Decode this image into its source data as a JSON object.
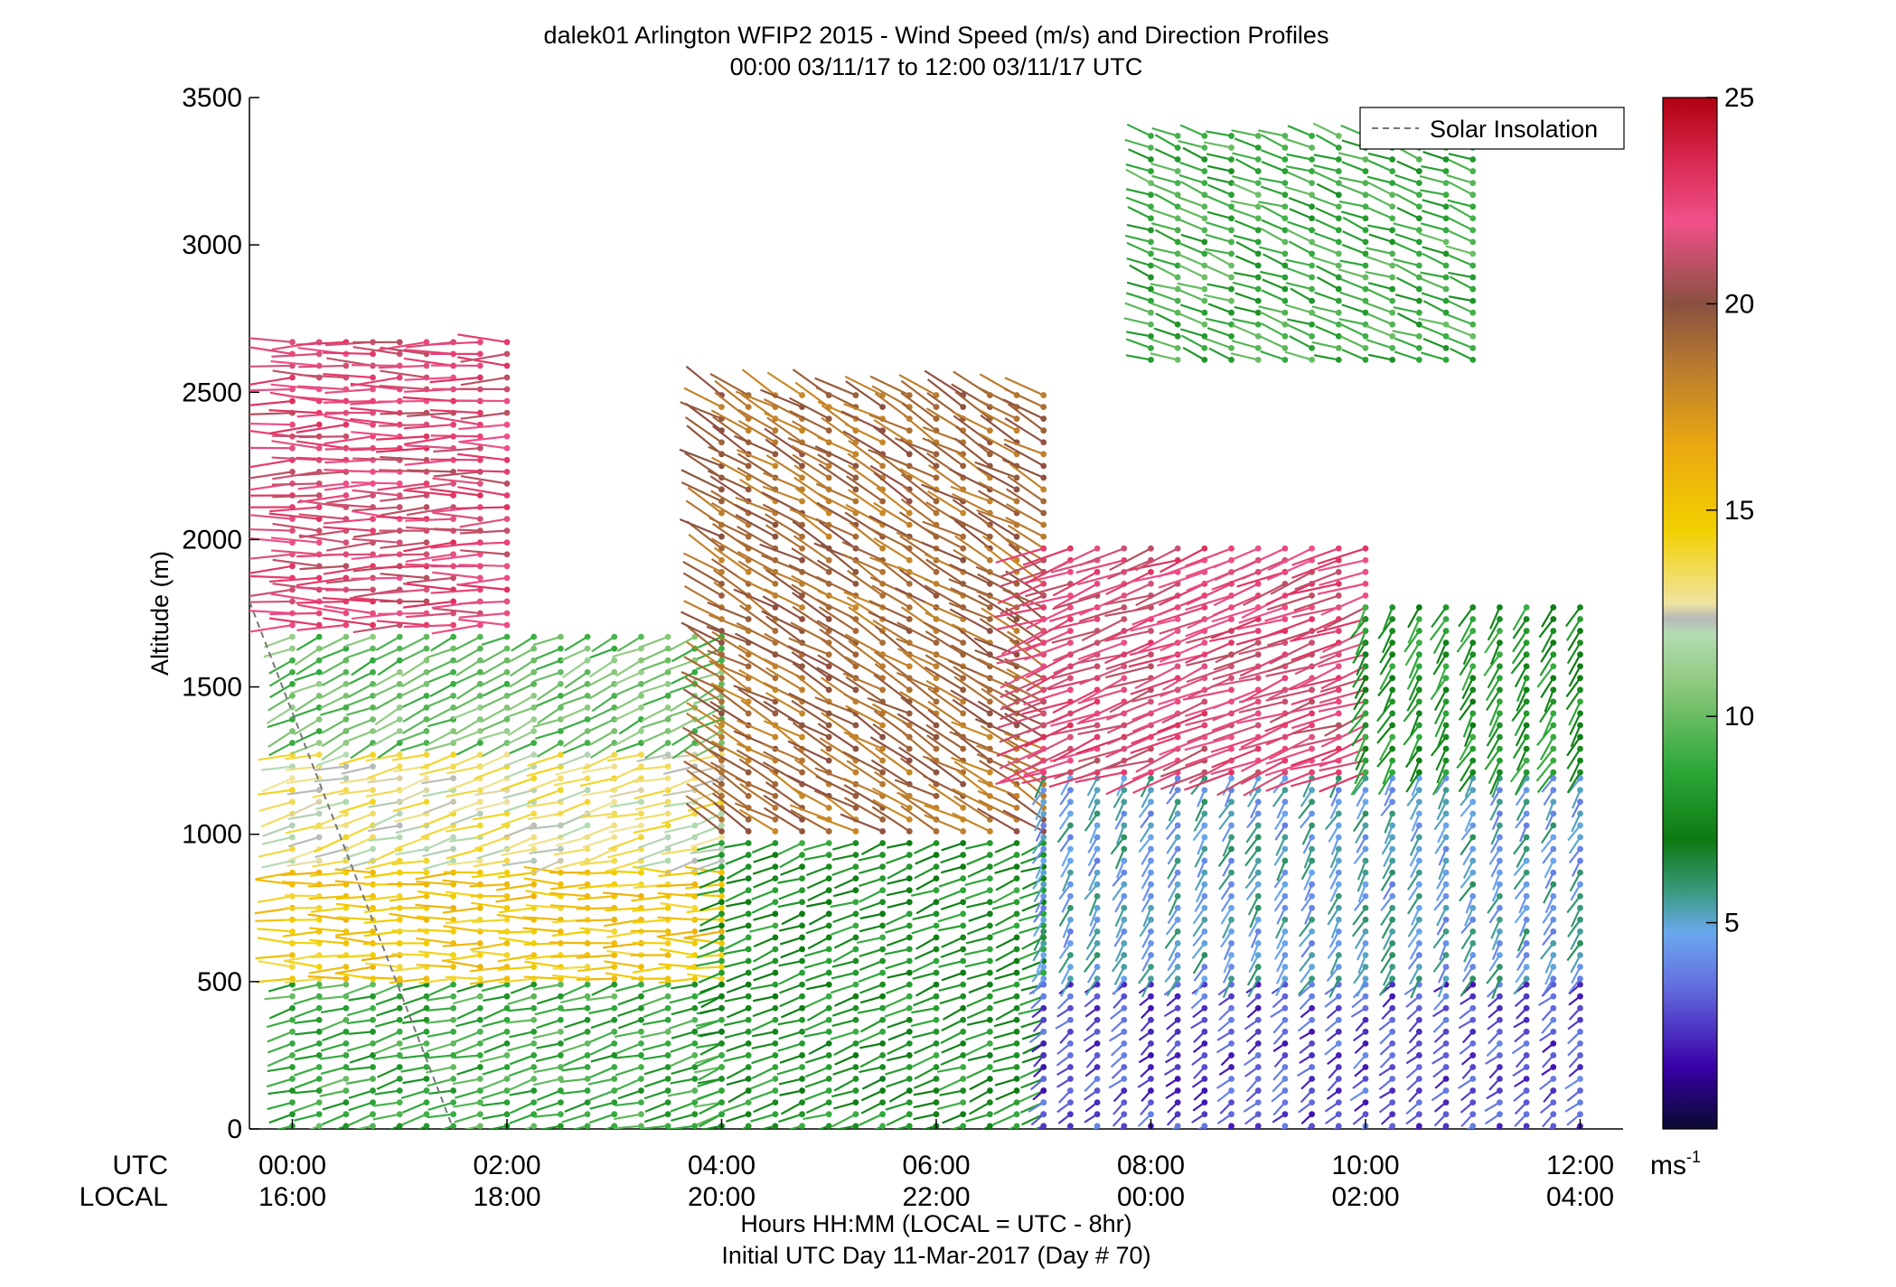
{
  "chart_data": {
    "type": "wind barb profile",
    "title": "dalek01 Arlington WFIP2 2015 - Wind Speed (m/s) and Direction Profiles",
    "subtitle": "00:00 03/11/17 to 12:00 03/11/17  UTC",
    "ylabel": "Altitude (m)",
    "xlabel": "Hours HH:MM  (LOCAL = UTC - 8hr)",
    "xlabel2": "Initial UTC Day 11-Mar-2017 (Day # 70)",
    "row_label_utc": "UTC",
    "row_label_local": "LOCAL",
    "xlim_hours": [
      -0.4,
      12.4
    ],
    "ylim": [
      0,
      3500
    ],
    "y_ticks": [
      0,
      500,
      1000,
      1500,
      2000,
      2500,
      3000,
      3500
    ],
    "x_ticks_hours": [
      0,
      2,
      4,
      6,
      8,
      10,
      12
    ],
    "x_tick_labels_utc": [
      "00:00",
      "02:00",
      "04:00",
      "06:00",
      "08:00",
      "10:00",
      "12:00"
    ],
    "x_tick_labels_local": [
      "16:00",
      "18:00",
      "20:00",
      "22:00",
      "00:00",
      "02:00",
      "04:00"
    ],
    "legend": {
      "label": "Solar Insolation",
      "placement": "top-right",
      "style": "dashed",
      "color": "#777777"
    },
    "colorbar": {
      "range": [
        0,
        25
      ],
      "ticks": [
        5,
        10,
        15,
        20,
        25
      ],
      "unit_label": "ms",
      "unit_exp": "-1"
    },
    "solar_insolation_line": [
      {
        "x": -0.4,
        "y": 1790
      },
      {
        "x": 1.5,
        "y": 0
      }
    ],
    "profile_summary": [
      {
        "x_range": [
          0.0,
          4.0
        ],
        "z_range": [
          0,
          500
        ],
        "speed": 9,
        "direction": 255
      },
      {
        "x_range": [
          0.0,
          4.0
        ],
        "z_range": [
          500,
          900
        ],
        "speed": 15,
        "direction": 270
      },
      {
        "x_range": [
          0.0,
          4.0
        ],
        "z_range": [
          900,
          1300
        ],
        "speed": 13,
        "direction": 255
      },
      {
        "x_range": [
          0.0,
          4.0
        ],
        "z_range": [
          1300,
          1700
        ],
        "speed": 10,
        "direction": 245
      },
      {
        "x_range": [
          0.0,
          2.2
        ],
        "z_range": [
          1700,
          2700
        ],
        "speed": 22,
        "direction": 270
      },
      {
        "x_range": [
          4.0,
          7.0
        ],
        "z_range": [
          0,
          1000
        ],
        "speed": 8,
        "direction": 250
      },
      {
        "x_range": [
          4.0,
          7.0
        ],
        "z_range": [
          1000,
          2500
        ],
        "speed": 19,
        "direction": 300
      },
      {
        "x_range": [
          7.0,
          12.0
        ],
        "z_range": [
          0,
          500
        ],
        "speed": 3,
        "direction": 230
      },
      {
        "x_range": [
          7.0,
          12.0
        ],
        "z_range": [
          500,
          1200
        ],
        "speed": 5,
        "direction": 210
      },
      {
        "x_range": [
          7.0,
          10.0
        ],
        "z_range": [
          1200,
          2000
        ],
        "speed": 22,
        "direction": 250
      },
      {
        "x_range": [
          10.0,
          12.0
        ],
        "z_range": [
          1200,
          1800
        ],
        "speed": 8,
        "direction": 210
      },
      {
        "x_range": [
          8.0,
          11.0
        ],
        "z_range": [
          2600,
          3400
        ],
        "speed": 9,
        "direction": 290
      }
    ]
  }
}
